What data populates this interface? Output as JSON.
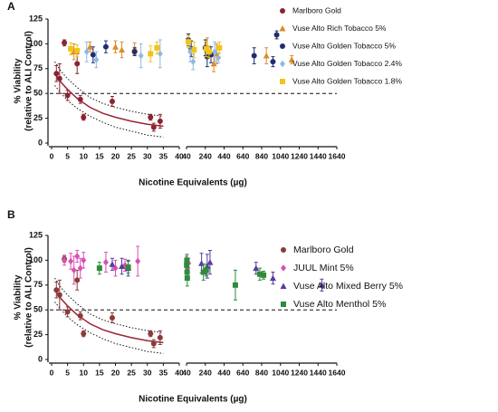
{
  "chart_data": [
    {
      "type": "scatter",
      "title": "A",
      "xlabel": "Nicotine Equivalents (µg)",
      "ylabel": [
        "% Viability",
        "(relative to ALI Control)"
      ],
      "ylim": [
        0,
        125
      ],
      "yticks": [
        0,
        25,
        50,
        75,
        100,
        125
      ],
      "x_segments": [
        {
          "xlim": [
            0,
            40
          ],
          "xticks": [
            0,
            5,
            10,
            15,
            20,
            25,
            30,
            35,
            40
          ]
        },
        {
          "xlim": [
            40,
            1640
          ],
          "xticks": [
            40,
            240,
            440,
            640,
            840,
            1040,
            1240,
            1440,
            1640
          ]
        }
      ],
      "reference_line": 50,
      "fit": {
        "color": "#9b2335",
        "x": [
          1,
          3,
          5,
          8,
          12,
          16,
          20,
          25,
          30,
          35
        ],
        "values": [
          70,
          61,
          54,
          45,
          36,
          30,
          26,
          22,
          19,
          17
        ],
        "lower": [
          58,
          50,
          43,
          35,
          27,
          21,
          16,
          12,
          8,
          6
        ],
        "upper": [
          82,
          72,
          65,
          56,
          46,
          40,
          36,
          32,
          29,
          27
        ]
      },
      "series": [
        {
          "name": "Marlboro Gold",
          "color": "#8b2332",
          "marker": "circle",
          "x": [
            1.5,
            2.5,
            4,
            5,
            8,
            9,
            10,
            19,
            31,
            32,
            34
          ],
          "values": [
            70,
            65,
            101,
            48,
            80,
            44,
            26,
            42,
            26,
            16,
            22
          ],
          "errors": [
            8,
            15,
            3,
            5,
            10,
            4,
            3,
            5,
            3,
            4,
            7
          ]
        },
        {
          "name": "Vuse Alto Rich Tobacco 5%",
          "color": "#d98c2a",
          "marker": "triangle",
          "x": [
            7,
            12,
            20,
            22,
            26,
            260,
            330,
            360,
            890,
            1160
          ],
          "values": [
            92,
            97,
            97,
            94,
            95,
            96,
            80,
            90,
            88,
            84
          ],
          "errors": [
            8,
            5,
            6,
            8,
            6,
            10,
            8,
            10,
            8,
            4
          ]
        },
        {
          "name": "Vuse Alto Golden Tobacco 5%",
          "color": "#1f2d6e",
          "marker": "circle",
          "x": [
            13,
            17,
            26,
            60,
            90,
            240,
            260,
            300,
            760,
            960,
            1000
          ],
          "values": [
            89,
            97,
            92,
            104,
            95,
            96,
            87,
            89,
            88,
            82,
            109
          ],
          "errors": [
            8,
            6,
            4,
            6,
            8,
            8,
            10,
            8,
            8,
            5,
            4
          ]
        },
        {
          "name": "Vuse Alto Golden Tobacco 2.4%",
          "color": "#8fb8e6",
          "marker": "diamond",
          "x": [
            11,
            14,
            28,
            34,
            80,
            110,
            340,
            380
          ],
          "values": [
            92,
            84,
            88,
            90,
            92,
            82,
            92,
            86
          ],
          "errors": [
            10,
            8,
            12,
            14,
            10,
            8,
            10,
            5
          ]
        },
        {
          "name": "Vuse Alto Golden Tobacco 1.8%",
          "color": "#f2c318",
          "marker": "square",
          "x": [
            6,
            8,
            31,
            33,
            60,
            120,
            250,
            280,
            390
          ],
          "values": [
            95,
            93,
            90,
            96,
            102,
            94,
            95,
            92,
            96
          ],
          "errors": [
            6,
            6,
            8,
            6,
            6,
            8,
            8,
            6,
            6
          ]
        }
      ]
    },
    {
      "type": "scatter",
      "title": "B",
      "xlabel": "Nicotine Equivalents (µg)",
      "ylabel": [
        "% Viability",
        "(relative to ALI Control)"
      ],
      "ylim": [
        0,
        125
      ],
      "yticks": [
        0,
        25,
        50,
        75,
        100,
        125
      ],
      "x_segments": [
        {
          "xlim": [
            0,
            40
          ],
          "xticks": [
            0,
            5,
            10,
            15,
            20,
            25,
            30,
            35,
            40
          ]
        },
        {
          "xlim": [
            40,
            1640
          ],
          "xticks": [
            40,
            240,
            440,
            640,
            840,
            1040,
            1240,
            1440,
            1640
          ]
        }
      ],
      "reference_line": 50,
      "fit": {
        "color": "#9b2335",
        "x": [
          1,
          3,
          5,
          8,
          12,
          16,
          20,
          25,
          30,
          35
        ],
        "values": [
          70,
          61,
          54,
          45,
          36,
          30,
          26,
          22,
          19,
          17
        ],
        "lower": [
          58,
          50,
          43,
          35,
          27,
          21,
          16,
          12,
          8,
          6
        ],
        "upper": [
          82,
          72,
          65,
          56,
          46,
          40,
          36,
          32,
          29,
          27
        ]
      },
      "series": [
        {
          "name": "Marlboro Gold",
          "color": "#8b3a3a",
          "marker": "circle",
          "x": [
            1.5,
            2.5,
            4,
            5,
            8,
            9,
            10,
            19,
            31,
            32,
            34
          ],
          "values": [
            70,
            65,
            101,
            48,
            80,
            44,
            26,
            42,
            26,
            16,
            22
          ],
          "errors": [
            8,
            15,
            3,
            5,
            10,
            4,
            3,
            5,
            3,
            4,
            7
          ]
        },
        {
          "name": "JUUL Mint 5%",
          "color": "#d94fb5",
          "marker": "diamond",
          "x": [
            4,
            6,
            7,
            8,
            9,
            10,
            17,
            20,
            23,
            27,
            40,
            50,
            60
          ],
          "values": [
            100,
            99,
            90,
            104,
            92,
            100,
            98,
            92,
            95,
            99,
            96,
            92,
            97
          ],
          "errors": [
            5,
            8,
            14,
            6,
            10,
            8,
            10,
            8,
            6,
            15,
            8,
            8,
            5
          ]
        },
        {
          "name": "Vuse Alto Mixed Berry 5%",
          "color": "#5a3a9e",
          "marker": "triangle",
          "x": [
            19,
            22,
            24,
            200,
            260,
            290,
            780,
            960,
            1480
          ],
          "values": [
            96,
            94,
            92,
            97,
            94,
            98,
            92,
            82,
            75
          ],
          "errors": [
            6,
            8,
            8,
            10,
            12,
            12,
            6,
            6,
            6
          ]
        },
        {
          "name": "Vuse Alto Menthol 5%",
          "color": "#2e8b3a",
          "marker": "square",
          "x": [
            15,
            24,
            42,
            44,
            46,
            48,
            220,
            250,
            560,
            820,
            860
          ],
          "values": [
            92,
            93,
            95,
            100,
            88,
            82,
            88,
            90,
            75,
            86,
            85
          ],
          "errors": [
            6,
            6,
            6,
            6,
            8,
            8,
            8,
            6,
            15,
            6,
            4
          ]
        }
      ]
    }
  ]
}
